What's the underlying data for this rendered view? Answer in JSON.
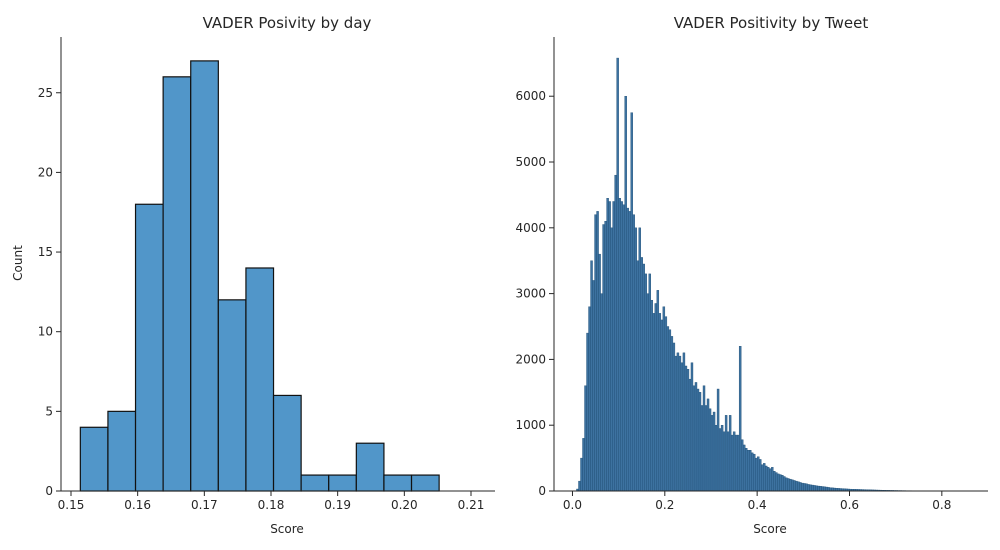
{
  "chart_data": [
    {
      "type": "bar",
      "title": "VADER Posivity by day",
      "xlabel": "Score",
      "ylabel": "Count",
      "xlim": [
        0.1485,
        0.2136
      ],
      "ylim": [
        0,
        28.5
      ],
      "xticks": [
        0.15,
        0.16,
        0.17,
        0.18,
        0.19,
        0.2,
        0.21
      ],
      "xtick_labels": [
        "0.15",
        "0.16",
        "0.17",
        "0.18",
        "0.19",
        "0.20",
        "0.21"
      ],
      "yticks": [
        0,
        5,
        10,
        15,
        20,
        25
      ],
      "ytick_labels": [
        "0",
        "5",
        "10",
        "15",
        "20",
        "25"
      ],
      "bin_start": 0.1514,
      "bin_width": 0.00414,
      "values": [
        4,
        5,
        18,
        26,
        27,
        12,
        14,
        6,
        1,
        1,
        3,
        1,
        1
      ],
      "color": "#5196c9",
      "grid": false
    },
    {
      "type": "bar",
      "title": "VADER Positivity by Tweet",
      "xlabel": "Score",
      "ylabel": "",
      "xlim": [
        -0.04,
        0.9
      ],
      "ylim": [
        0,
        6900
      ],
      "xticks": [
        0.0,
        0.2,
        0.4,
        0.6,
        0.8
      ],
      "xtick_labels": [
        "0.0",
        "0.2",
        "0.4",
        "0.6",
        "0.8"
      ],
      "yticks": [
        0,
        1000,
        2000,
        3000,
        4000,
        5000,
        6000
      ],
      "ytick_labels": [
        "0",
        "1000",
        "2000",
        "3000",
        "4000",
        "5000",
        "6000"
      ],
      "bin_start": 0.0,
      "bin_width": 0.00435,
      "values": [
        0,
        0,
        30,
        150,
        500,
        800,
        1600,
        2400,
        2800,
        3500,
        3200,
        4200,
        4250,
        3600,
        3000,
        4050,
        4100,
        4450,
        4400,
        4000,
        4400,
        4800,
        6580,
        4450,
        4400,
        4350,
        6000,
        4300,
        4250,
        5750,
        4200,
        4000,
        3500,
        4000,
        3550,
        3450,
        3300,
        3000,
        3300,
        2900,
        2700,
        2850,
        3050,
        2700,
        2600,
        2800,
        2650,
        2500,
        2450,
        2350,
        2250,
        2050,
        2100,
        2050,
        1950,
        2100,
        1900,
        1850,
        1700,
        1950,
        1600,
        1650,
        1550,
        1500,
        1300,
        1600,
        1300,
        1400,
        1250,
        1150,
        1200,
        1000,
        1550,
        950,
        1000,
        900,
        1150,
        900,
        1150,
        850,
        900,
        850,
        850,
        2200,
        780,
        700,
        650,
        620,
        620,
        580,
        560,
        500,
        520,
        480,
        400,
        420,
        380,
        360,
        340,
        360,
        300,
        280,
        260,
        250,
        240,
        220,
        200,
        190,
        180,
        170,
        160,
        150,
        140,
        130,
        120,
        115,
        110,
        100,
        95,
        90,
        85,
        80,
        75,
        72,
        68,
        65,
        60,
        55,
        50,
        48,
        45,
        42,
        40,
        38,
        36,
        34,
        32,
        30,
        28,
        27,
        26,
        25,
        24,
        23,
        22,
        21,
        20,
        19,
        18,
        17,
        16,
        15,
        14,
        13,
        12,
        11,
        10,
        10,
        9,
        9,
        8,
        8,
        7,
        7,
        6,
        6,
        5,
        5,
        5,
        4,
        4,
        4,
        3,
        3,
        3,
        3,
        2,
        2,
        2,
        2,
        2,
        1,
        1,
        1,
        1,
        1,
        1,
        1,
        1,
        1,
        0,
        0,
        1,
        0,
        0,
        1,
        0,
        0,
        0,
        1,
        0,
        0,
        0,
        0,
        1,
        0,
        0,
        0,
        0,
        0,
        0
      ],
      "color": "#3d72a0",
      "grid": false
    }
  ]
}
